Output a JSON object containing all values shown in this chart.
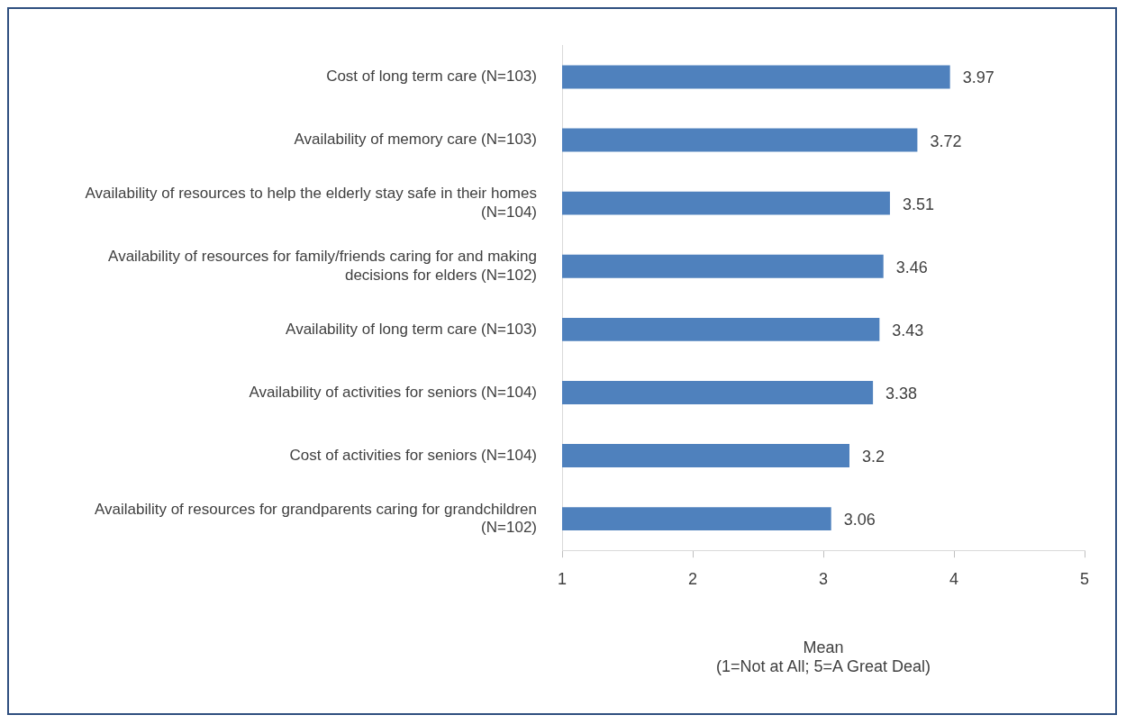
{
  "chart_data": {
    "type": "bar",
    "orientation": "horizontal",
    "categories": [
      "Cost of long term care (N=103)",
      "Availability of memory care (N=103)",
      "Availability of resources to help the elderly stay safe in their homes (N=104)",
      "Availability of resources for family/friends caring for and making decisions for elders (N=102)",
      "Availability of long term care (N=103)",
      "Availability of activities for seniors (N=104)",
      "Cost of activities for seniors (N=104)",
      "Availability of resources for grandparents caring for grandchildren (N=102)"
    ],
    "values": [
      3.97,
      3.72,
      3.51,
      3.46,
      3.43,
      3.38,
      3.2,
      3.06
    ],
    "color": "#4f81bd",
    "xlim": [
      1,
      5
    ],
    "xticks": [
      1,
      2,
      3,
      4,
      5
    ],
    "grid": false,
    "legend": false,
    "data_labels": true,
    "xlabel": "Mean\n(1=Not at All; 5=A Great Deal)"
  }
}
